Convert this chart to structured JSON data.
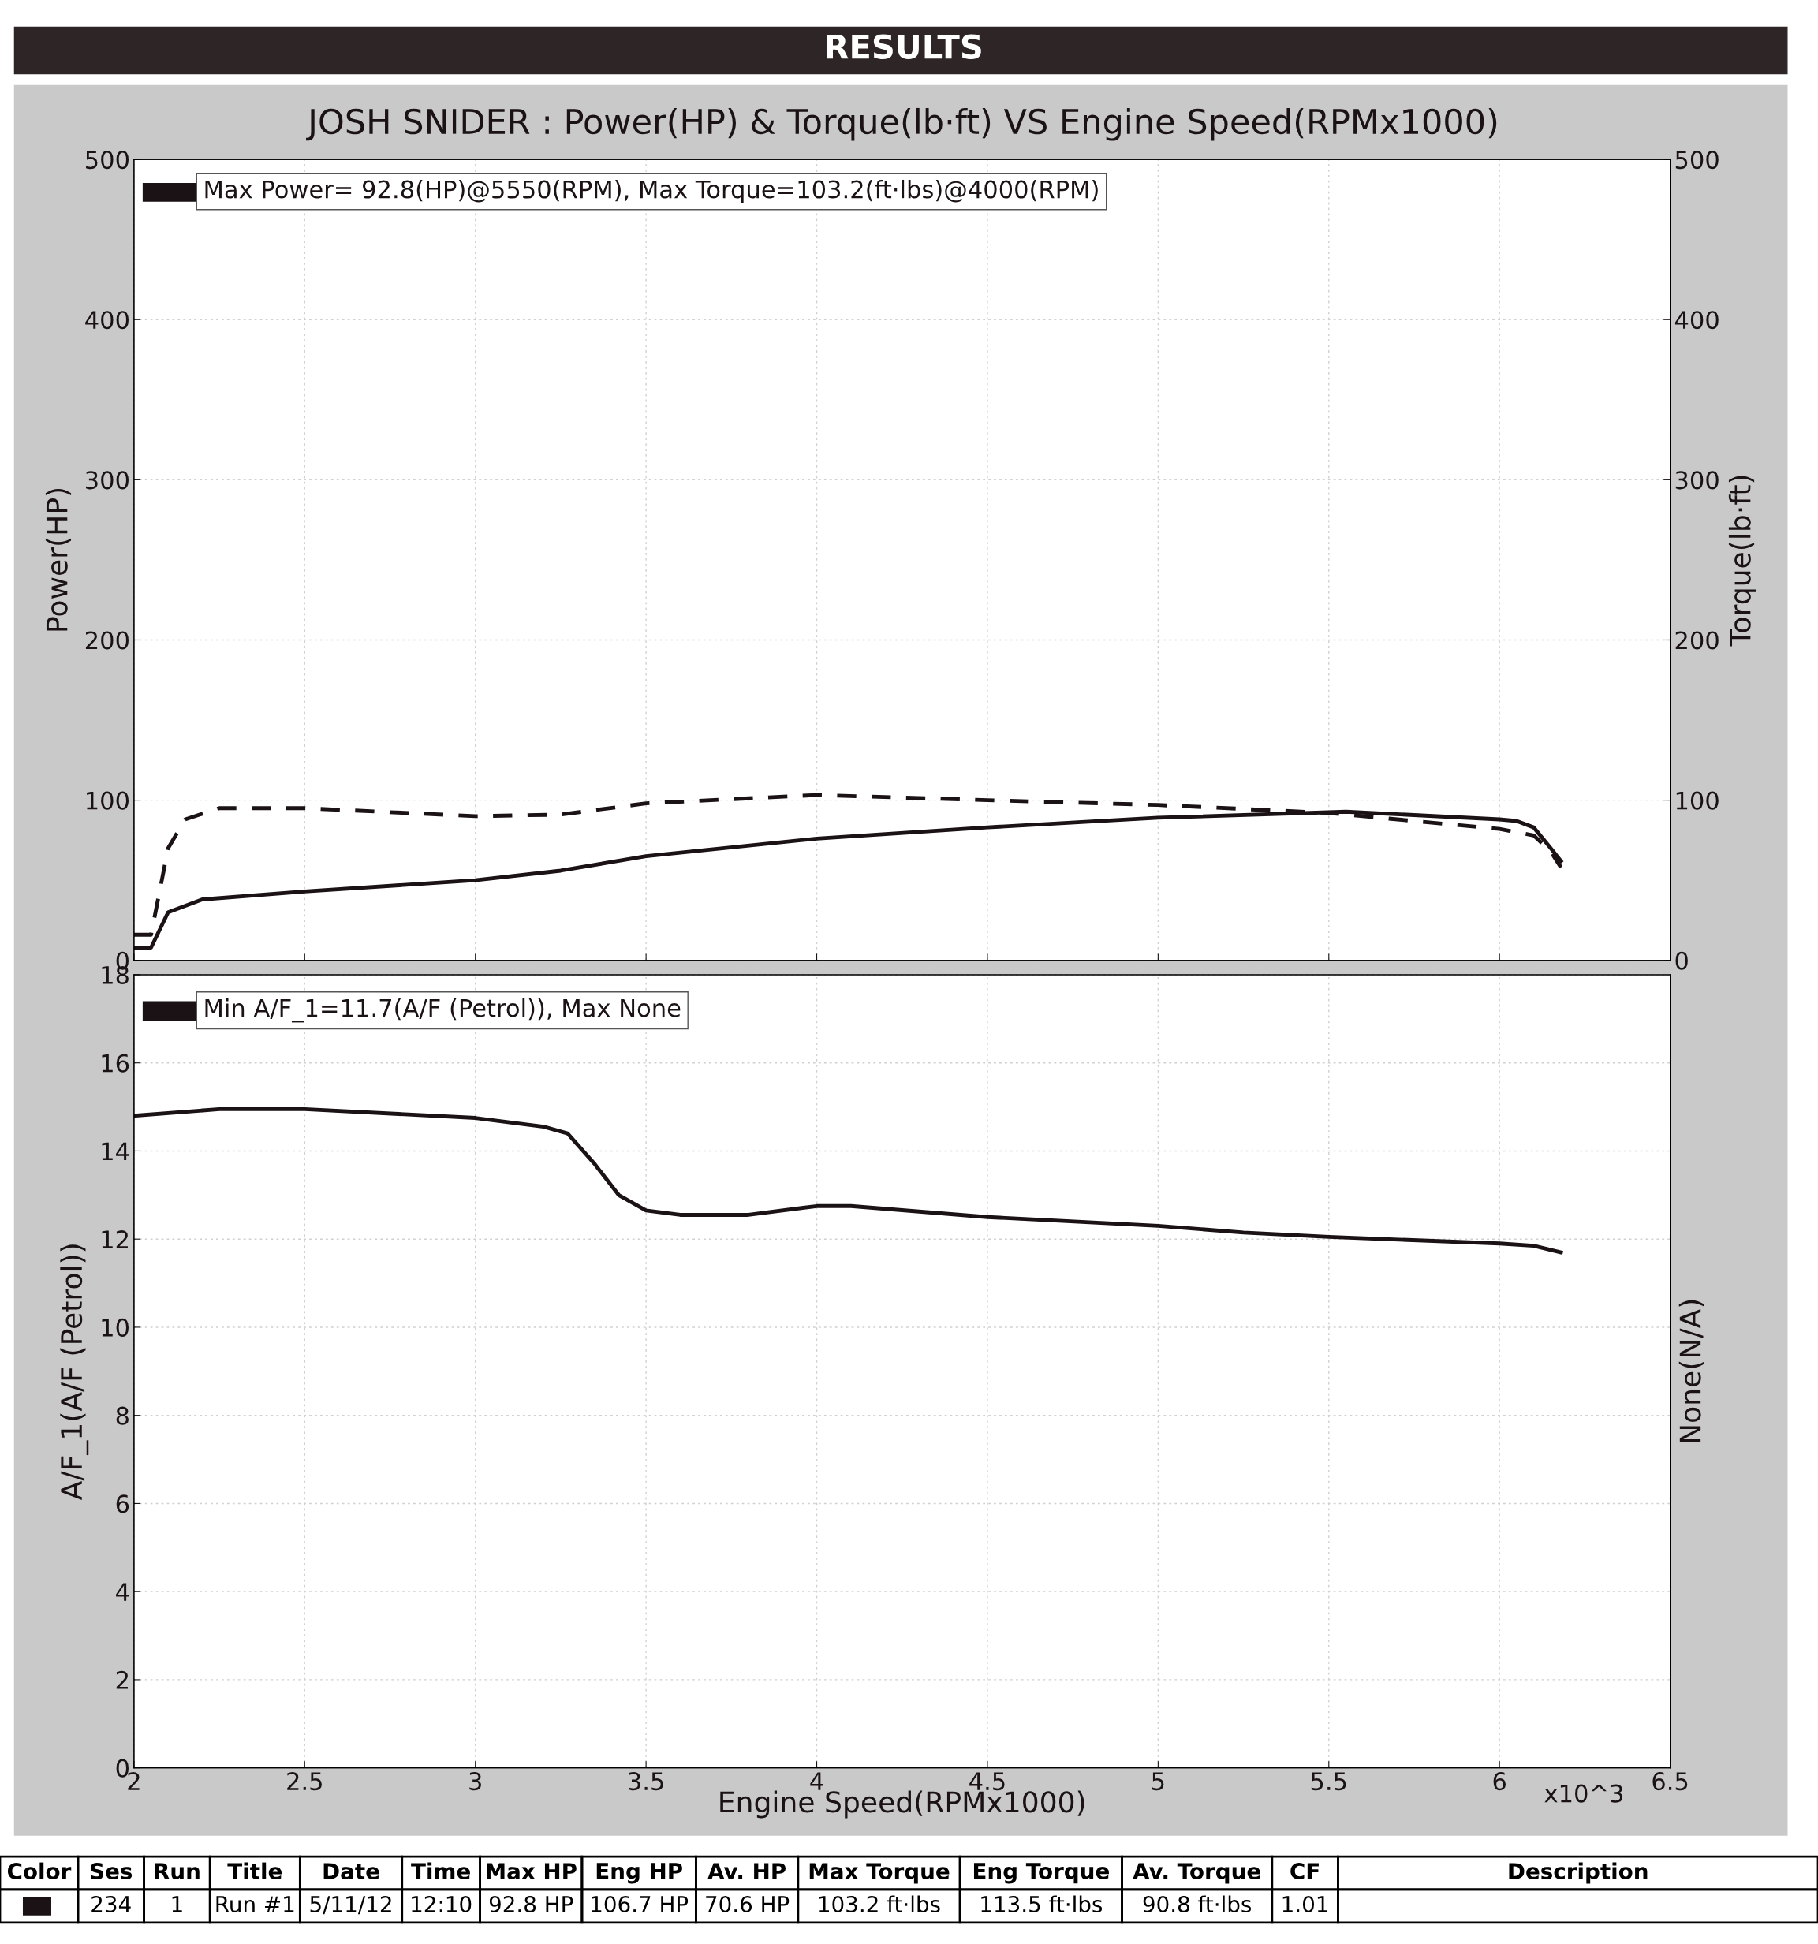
{
  "chart_data": [
    {
      "type": "line",
      "title": "JOSH SNIDER : Power(HP) & Torque(lb·ft) VS Engine Speed(RPMx1000)",
      "ylabel": "Power(HP)",
      "y2label": "Torque(lb·ft)",
      "annotations": [
        "RESULTS",
        "Max Power= 92.8(HP)@5550(RPM), Max Torque=103.2(ft·lbs)@4000(RPM)"
      ],
      "xlim": [
        2,
        6.5
      ],
      "ylim": [
        0,
        500
      ],
      "yticks": [
        0,
        100,
        200,
        300,
        400,
        500
      ],
      "y2lim": [
        0,
        500
      ],
      "y2ticks": [
        0,
        100,
        200,
        300,
        400,
        500
      ],
      "grid": true,
      "tick_labels": "y",
      "series": [
        {
          "color": "#1a1214",
          "line_style": "solid",
          "x": [
            2.0,
            2.05,
            2.1,
            2.2,
            2.5,
            3.0,
            3.25,
            3.5,
            4.0,
            4.5,
            5.0,
            5.55,
            6.0,
            6.05,
            6.1,
            6.15,
            6.18
          ],
          "values": [
            8,
            8,
            30,
            38,
            43,
            50,
            56,
            65,
            76,
            83,
            89,
            92.8,
            88,
            87,
            83,
            70,
            62
          ]
        },
        {
          "color": "#1a1214",
          "line_style": "dashed",
          "axis": "y2",
          "x": [
            2.0,
            2.05,
            2.1,
            2.15,
            2.25,
            2.5,
            3.0,
            3.25,
            3.5,
            4.0,
            4.5,
            5.0,
            5.5,
            6.0,
            6.1,
            6.15,
            6.18
          ],
          "values": [
            16,
            16,
            70,
            88,
            95,
            95,
            90,
            91,
            98,
            103.2,
            100,
            97,
            92,
            82,
            78,
            68,
            58
          ]
        }
      ]
    },
    {
      "type": "line",
      "xlabel": "Engine Speed(RPMx1000)",
      "ylabel": "A/F_1(A/F (Petrol))",
      "y2label": "None(N/A)",
      "annotations": [
        "Min A/F_1=11.7(A/F (Petrol)), Max None",
        "x10^3"
      ],
      "xlim": [
        2,
        6.5
      ],
      "xticks": [
        2,
        2.5,
        3,
        3.5,
        4,
        4.5,
        5,
        5.5,
        6,
        6.5
      ],
      "ylim": [
        0,
        18
      ],
      "yticks": [
        0,
        2,
        4,
        6,
        8,
        10,
        12,
        14,
        16,
        18
      ],
      "grid": true,
      "series": [
        {
          "color": "#1a1214",
          "line_style": "solid",
          "x": [
            2.0,
            2.25,
            2.5,
            3.0,
            3.2,
            3.27,
            3.35,
            3.42,
            3.5,
            3.6,
            3.8,
            4.0,
            4.1,
            4.5,
            5.0,
            5.25,
            5.5,
            6.0,
            6.1,
            6.18
          ],
          "values": [
            14.8,
            14.95,
            14.95,
            14.75,
            14.55,
            14.4,
            13.7,
            13.0,
            12.65,
            12.55,
            12.55,
            12.75,
            12.75,
            12.5,
            12.3,
            12.15,
            12.05,
            11.9,
            11.85,
            11.7
          ]
        }
      ]
    },
    {
      "type": "other",
      "annotations": [
        "Color",
        "Ses",
        "Run",
        "Title",
        "Date",
        "Time",
        "Max HP",
        "Eng HP",
        "Av. HP",
        "Max Torque",
        "Eng Torque",
        "Av. Torque",
        "CF",
        "Description",
        "234",
        "1",
        "Run #1",
        "5/11/12",
        "12:10",
        "92.8 HP",
        "106.7 HP",
        "70.6 HP",
        "103.2 ft·lbs",
        "113.5 ft·lbs",
        "90.8 ft·lbs",
        "1.01"
      ]
    }
  ]
}
